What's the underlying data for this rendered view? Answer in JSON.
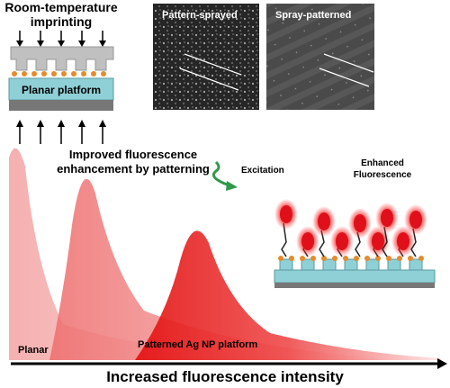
{
  "imprinting": {
    "title": [
      "Room-temperature",
      "imprinting"
    ],
    "platform_label": "Planar platform"
  },
  "images": [
    {
      "label": "Pattern-sprayed"
    },
    {
      "label": "Spray-patterned"
    }
  ],
  "annotation": [
    "Improved fluorescence",
    "enhancement by patterning"
  ],
  "excitation": "Excitation",
  "emission": [
    "Enhanced",
    "Fluorescence"
  ],
  "curves": {
    "planar": "Planar",
    "patterned": "Patterned Ag NP platform"
  },
  "axis_label": "Increased fluorescence intensity"
}
